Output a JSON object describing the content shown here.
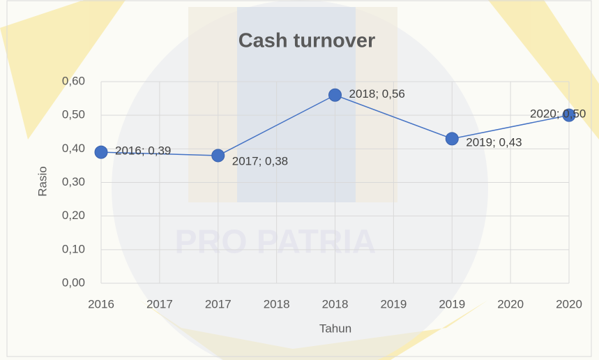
{
  "chart_data": {
    "type": "line",
    "title": "Cash turnover",
    "x_label": "Tahun",
    "y_label": "Rasio",
    "watermark": "PRO PATRIA",
    "x": [
      2016,
      2017,
      2018,
      2019,
      2020
    ],
    "series": [
      {
        "name": "Cash turnover",
        "color": "#4472c4",
        "values": [
          0.39,
          0.38,
          0.56,
          0.43,
          0.5
        ],
        "value_labels": [
          "2016; 0,39",
          "2017; 0,38",
          "2018; 0,56",
          "2019; 0,43",
          "2020; 0,50"
        ]
      }
    ],
    "xlim": [
      2016,
      2020
    ],
    "xticks": [
      2016,
      {
        "value": 2016.5,
        "label": "2017"
      },
      2017,
      {
        "value": 2017.5,
        "label": "2018"
      },
      2018,
      {
        "value": 2018.5,
        "label": "2019"
      },
      2019,
      {
        "value": 2019.5,
        "label": "2020"
      },
      2020
    ],
    "ylim": [
      0,
      0.6
    ],
    "yticks": [
      {
        "value": 0,
        "label": "0,00"
      },
      {
        "value": 0.1,
        "label": "0,10"
      },
      {
        "value": 0.2,
        "label": "0,20"
      },
      {
        "value": 0.3,
        "label": "0,30"
      },
      {
        "value": 0.4,
        "label": "0,40"
      },
      {
        "value": 0.5,
        "label": "0,50"
      },
      {
        "value": 0.6,
        "label": "0,60"
      }
    ],
    "grid": true
  }
}
